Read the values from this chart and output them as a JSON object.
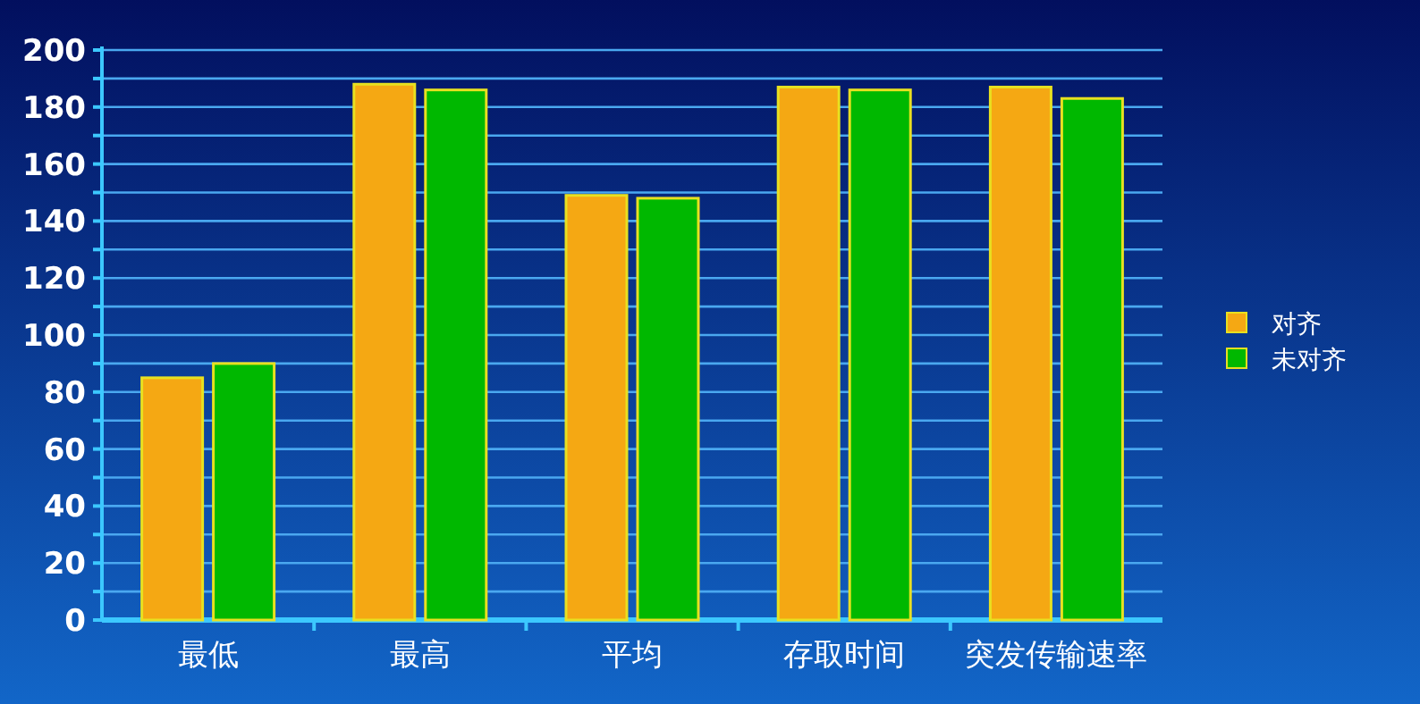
{
  "chart_data": {
    "type": "bar",
    "categories": [
      "最低",
      "最高",
      "平均",
      "存取时间",
      "突发传输速率"
    ],
    "series": [
      {
        "name": "对齐",
        "color": "#f5a813",
        "values": [
          85,
          188,
          149,
          187,
          187
        ]
      },
      {
        "name": "未对齐",
        "color": "#00b800",
        "values": [
          90,
          186,
          148,
          186,
          183
        ]
      }
    ],
    "ylim": [
      0,
      200
    ],
    "yticks": [
      0,
      {
        "value": 10,
        "label": null
      },
      20,
      {
        "value": 30,
        "label": null
      },
      40,
      {
        "value": 50,
        "label": null
      },
      60,
      {
        "value": 70,
        "label": null
      },
      80,
      {
        "value": 90,
        "label": null
      },
      100,
      {
        "value": 110,
        "label": null
      },
      120,
      {
        "value": 130,
        "label": null
      },
      140,
      {
        "value": 150,
        "label": null
      },
      160,
      {
        "value": 170,
        "label": null
      },
      180,
      {
        "value": 190,
        "label": null
      },
      200
    ],
    "grid": "y",
    "legend": "right"
  }
}
